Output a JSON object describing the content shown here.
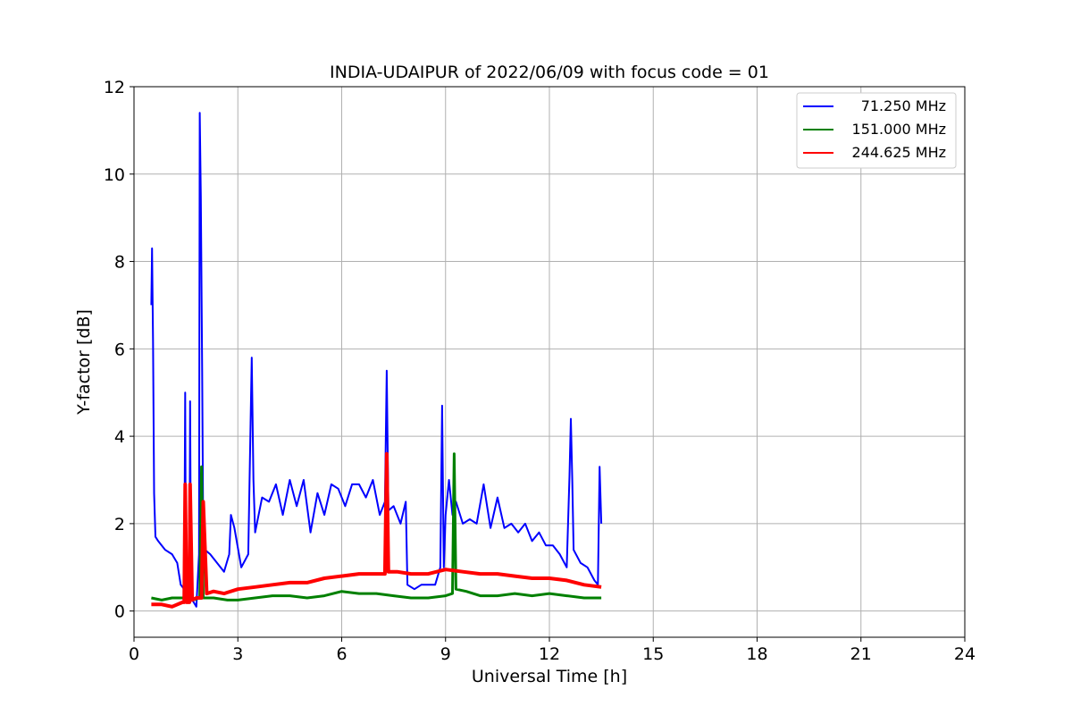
{
  "chart_data": {
    "type": "line",
    "title": "INDIA-UDAIPUR of 2022/06/09 with focus code = 01",
    "xlabel": "Universal Time [h]",
    "ylabel": "Y-factor [dB]",
    "xlim": [
      0,
      24
    ],
    "ylim": [
      -0.6,
      12
    ],
    "xticks": [
      0,
      3,
      6,
      9,
      12,
      15,
      18,
      21,
      24
    ],
    "yticks": [
      0,
      2,
      4,
      6,
      8,
      10,
      12
    ],
    "grid": true,
    "legend_position": "top-right",
    "series": [
      {
        "name": "71.250 MHz",
        "color": "#0000ff",
        "x": [
          0.5,
          0.52,
          0.55,
          0.58,
          0.62,
          0.7,
          0.9,
          1.1,
          1.25,
          1.35,
          1.45,
          1.48,
          1.5,
          1.6,
          1.62,
          1.65,
          1.8,
          1.88,
          1.9,
          1.93,
          1.97,
          2.0,
          2.05,
          2.2,
          2.4,
          2.6,
          2.75,
          2.8,
          2.9,
          3.1,
          3.3,
          3.4,
          3.45,
          3.5,
          3.7,
          3.9,
          4.1,
          4.3,
          4.5,
          4.7,
          4.9,
          5.1,
          5.3,
          5.5,
          5.7,
          5.9,
          6.1,
          6.3,
          6.5,
          6.7,
          6.9,
          7.1,
          7.25,
          7.3,
          7.35,
          7.5,
          7.7,
          7.85,
          7.9,
          8.1,
          8.3,
          8.5,
          8.7,
          8.85,
          8.9,
          8.95,
          9.0,
          9.1,
          9.2,
          9.3,
          9.5,
          9.7,
          9.9,
          10.1,
          10.3,
          10.5,
          10.7,
          10.9,
          11.1,
          11.3,
          11.5,
          11.7,
          11.9,
          12.1,
          12.3,
          12.5,
          12.58,
          12.62,
          12.66,
          12.7,
          12.9,
          13.1,
          13.3,
          13.4,
          13.45,
          13.5
        ],
        "values": [
          7.0,
          8.3,
          6.2,
          2.7,
          1.7,
          1.6,
          1.4,
          1.3,
          1.1,
          0.6,
          0.5,
          5.0,
          0.5,
          0.3,
          4.8,
          0.3,
          0.1,
          1.3,
          11.4,
          9.5,
          5.5,
          1.6,
          1.4,
          1.3,
          1.1,
          0.9,
          1.3,
          2.2,
          1.9,
          1.0,
          1.3,
          5.8,
          3.0,
          1.8,
          2.6,
          2.5,
          2.9,
          2.2,
          3.0,
          2.4,
          3.0,
          1.8,
          2.7,
          2.2,
          2.9,
          2.8,
          2.4,
          2.9,
          2.9,
          2.6,
          3.0,
          2.2,
          2.5,
          5.5,
          2.3,
          2.4,
          2.0,
          2.5,
          0.6,
          0.5,
          0.6,
          0.6,
          0.6,
          1.0,
          4.7,
          1.0,
          2.2,
          3.0,
          2.2,
          2.5,
          2.0,
          2.1,
          2.0,
          2.9,
          1.9,
          2.6,
          1.9,
          2.0,
          1.8,
          2.0,
          1.6,
          1.8,
          1.5,
          1.5,
          1.3,
          1.0,
          3.1,
          4.4,
          3.0,
          1.4,
          1.1,
          1.0,
          0.7,
          0.6,
          3.3,
          2.0
        ]
      },
      {
        "name": "151.000 MHz",
        "color": "#008000",
        "x": [
          0.5,
          0.8,
          1.1,
          1.4,
          1.7,
          1.9,
          1.95,
          2.0,
          2.3,
          2.7,
          3.0,
          3.5,
          4.0,
          4.5,
          5.0,
          5.5,
          6.0,
          6.5,
          7.0,
          7.5,
          8.0,
          8.5,
          9.0,
          9.2,
          9.25,
          9.3,
          9.6,
          10.0,
          10.5,
          11.0,
          11.5,
          12.0,
          12.5,
          13.0,
          13.5
        ],
        "values": [
          0.3,
          0.25,
          0.3,
          0.3,
          0.25,
          0.3,
          3.3,
          0.3,
          0.3,
          0.25,
          0.25,
          0.3,
          0.35,
          0.35,
          0.3,
          0.35,
          0.45,
          0.4,
          0.4,
          0.35,
          0.3,
          0.3,
          0.35,
          0.4,
          3.6,
          0.5,
          0.45,
          0.35,
          0.35,
          0.4,
          0.35,
          0.4,
          0.35,
          0.3,
          0.3
        ]
      },
      {
        "name": "244.625 MHz",
        "color": "#ff0000",
        "x": [
          0.5,
          0.8,
          1.1,
          1.4,
          1.45,
          1.48,
          1.52,
          1.6,
          1.62,
          1.68,
          1.8,
          1.95,
          2.0,
          2.1,
          2.3,
          2.6,
          3.0,
          3.5,
          4.0,
          4.5,
          5.0,
          5.5,
          6.0,
          6.5,
          7.0,
          7.25,
          7.3,
          7.35,
          7.6,
          8.0,
          8.5,
          9.0,
          9.5,
          10.0,
          10.5,
          11.0,
          11.5,
          12.0,
          12.5,
          13.0,
          13.5
        ],
        "values": [
          0.15,
          0.15,
          0.1,
          0.2,
          0.2,
          2.9,
          0.2,
          0.2,
          2.9,
          0.25,
          0.3,
          0.3,
          2.5,
          0.4,
          0.45,
          0.4,
          0.5,
          0.55,
          0.6,
          0.65,
          0.65,
          0.75,
          0.8,
          0.85,
          0.85,
          0.85,
          3.6,
          0.9,
          0.9,
          0.85,
          0.85,
          0.95,
          0.9,
          0.85,
          0.85,
          0.8,
          0.75,
          0.75,
          0.7,
          0.6,
          0.55
        ]
      }
    ]
  }
}
